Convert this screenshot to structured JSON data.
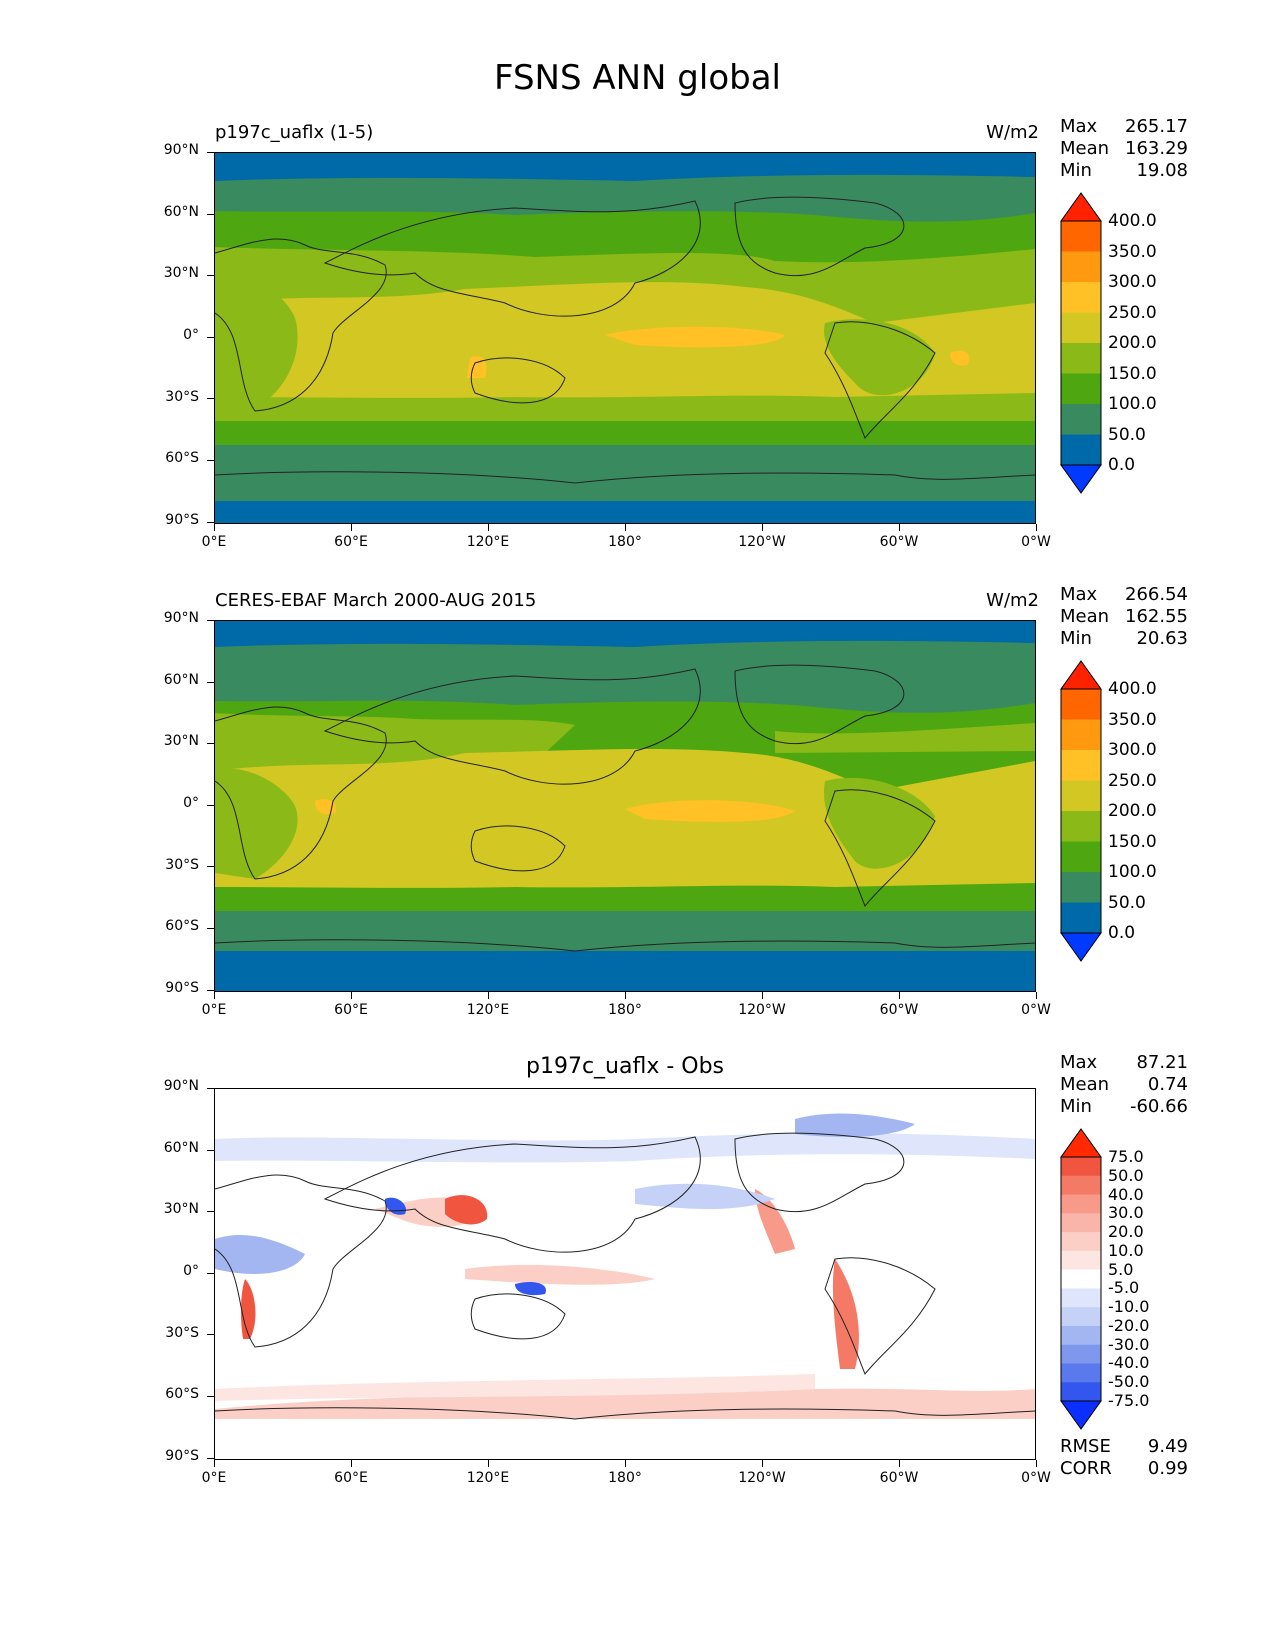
{
  "page_title": "FSNS ANN global",
  "axes": {
    "lat_ticks": [
      "90°N",
      "60°N",
      "30°N",
      "0°",
      "30°S",
      "60°S",
      "90°S"
    ],
    "lon_ticks": [
      "0°E",
      "60°E",
      "120°E",
      "180°",
      "120°W",
      "60°W",
      "0°W"
    ]
  },
  "panels": [
    {
      "title": "p197c_uaflx (1-5)",
      "units": "W/m2",
      "stats": {
        "max_label": "Max",
        "max": "265.17",
        "mean_label": "Mean",
        "mean": "163.29",
        "min_label": "Min",
        "min": "19.08"
      },
      "colorbar": {
        "labels": [
          "400.0",
          "350.0",
          "300.0",
          "250.0",
          "200.0",
          "150.0",
          "100.0",
          "50.0",
          "0.0"
        ],
        "colors": [
          "#ff2200",
          "#ff6600",
          "#ff9a10",
          "#ffc125",
          "#d3c823",
          "#8bb917",
          "#4ea610",
          "#3a8a60",
          "#0069a8",
          "#0039ff"
        ]
      }
    },
    {
      "title": "CERES-EBAF March 2000-AUG 2015",
      "units": "W/m2",
      "stats": {
        "max_label": "Max",
        "max": "266.54",
        "mean_label": "Mean",
        "mean": "162.55",
        "min_label": "Min",
        "min": "20.63"
      },
      "colorbar": {
        "labels": [
          "400.0",
          "350.0",
          "300.0",
          "250.0",
          "200.0",
          "150.0",
          "100.0",
          "50.0",
          "0.0"
        ],
        "colors": [
          "#ff2200",
          "#ff6600",
          "#ff9a10",
          "#ffc125",
          "#d3c823",
          "#8bb917",
          "#4ea610",
          "#3a8a60",
          "#0069a8",
          "#0039ff"
        ]
      }
    },
    {
      "title": "p197c_uaflx - Obs",
      "stats": {
        "max_label": "Max",
        "max": "87.21",
        "mean_label": "Mean",
        "mean": "0.74",
        "min_label": "Min",
        "min": "-60.66"
      },
      "colorbar": {
        "labels": [
          "75.0",
          "50.0",
          "40.0",
          "30.0",
          "20.0",
          "10.0",
          "5.0",
          "-5.0",
          "-10.0",
          "-20.0",
          "-30.0",
          "-40.0",
          "-50.0",
          "-75.0"
        ],
        "colors": [
          "#ff2a00",
          "#f0553f",
          "#f47a66",
          "#f79a8a",
          "#f9b5a9",
          "#fbcfc6",
          "#fde6e1",
          "#ffffff",
          "#dfe6fb",
          "#c5d1f7",
          "#a3b6f2",
          "#7f98ee",
          "#5a79ec",
          "#3356ef",
          "#0a2fff"
        ]
      },
      "metrics": {
        "rmse_label": "RMSE",
        "rmse": "9.49",
        "corr_label": "CORR",
        "corr": "0.99"
      }
    }
  ]
}
